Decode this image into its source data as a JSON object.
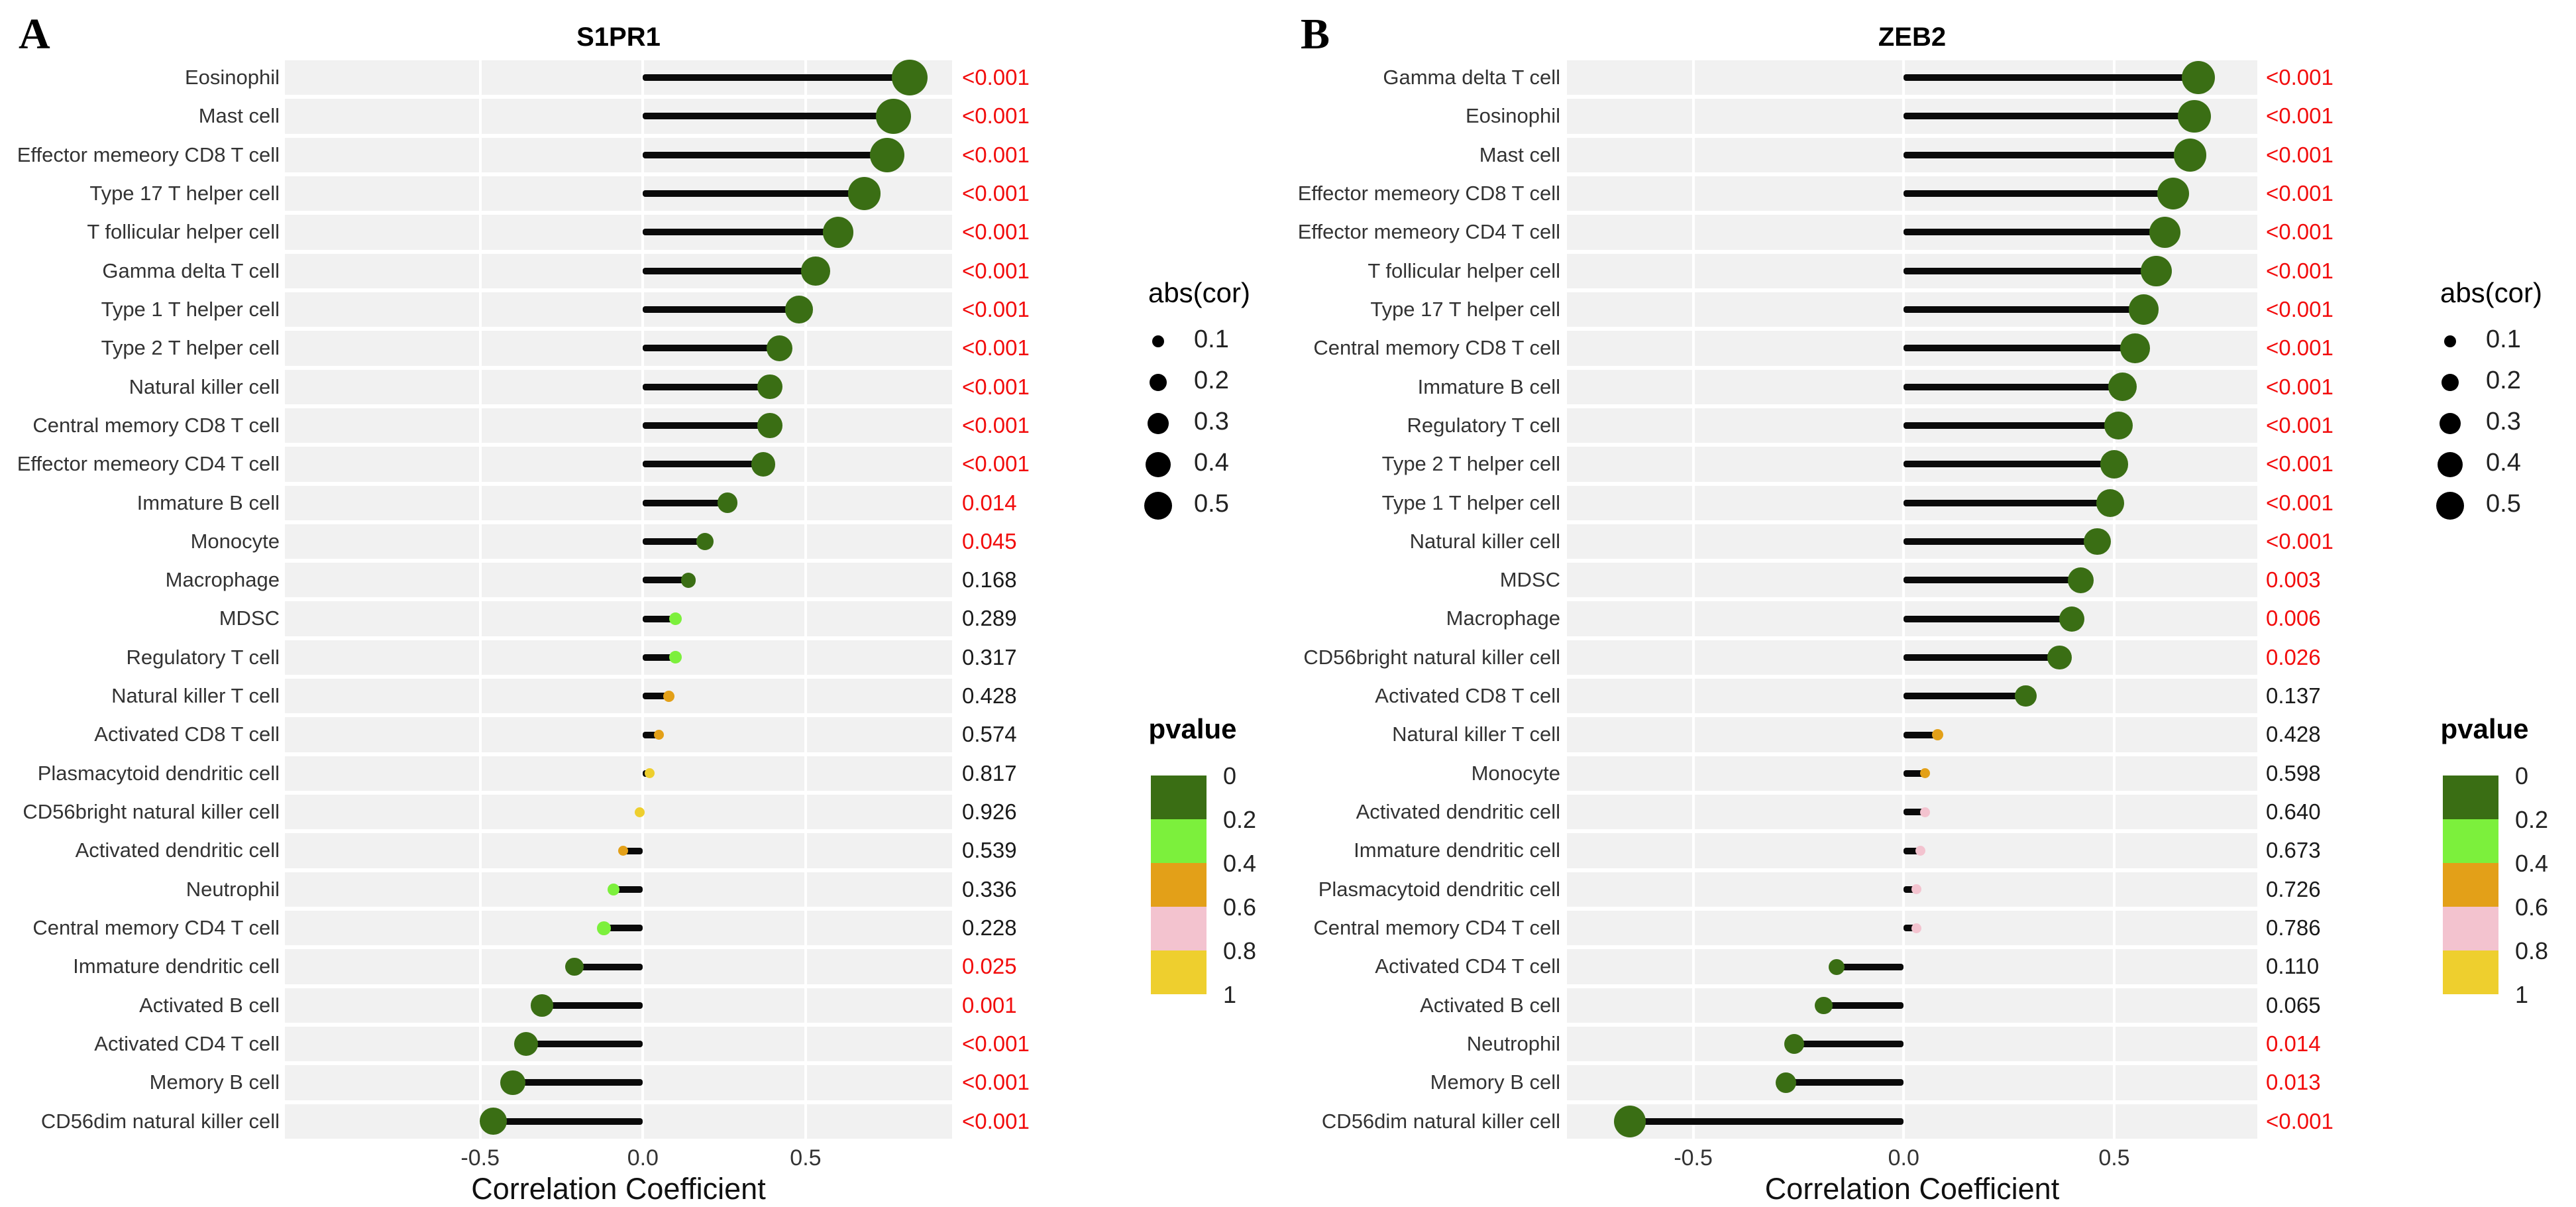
{
  "figure": {
    "kind": "paired lollipop correlation plots"
  },
  "colors": {
    "pvalue_bins": [
      "#3a6e14",
      "#7cf03c",
      "#e3a018",
      "#f3c3cf",
      "#eecf2e"
    ],
    "significant_text": "#f20c0c",
    "normal_text": "#1a1a1a",
    "row_band": "#f1f1f1",
    "stick": "#0a0a0a"
  },
  "legend_abscor": {
    "title": "abs(cor)",
    "sizes": [
      {
        "label": "0.1",
        "value": 0.1
      },
      {
        "label": "0.2",
        "value": 0.2
      },
      {
        "label": "0.3",
        "value": 0.3
      },
      {
        "label": "0.4",
        "value": 0.4
      },
      {
        "label": "0.5",
        "value": 0.5
      }
    ]
  },
  "legend_pvalue": {
    "title": "pvalue",
    "tick_labels": [
      "0",
      "0.2",
      "0.4",
      "0.6",
      "0.8",
      "1"
    ]
  },
  "chart_data": [
    {
      "type": "lollipop",
      "letter": "A",
      "title": "S1PR1",
      "xlabel": "Correlation Coefficient",
      "xlim": [
        -1.1,
        0.95
      ],
      "grid": true,
      "xticks": [
        {
          "v": -0.5,
          "label": "-0.5"
        },
        {
          "v": 0.0,
          "label": "0.0"
        },
        {
          "v": 0.5,
          "label": "0.5"
        }
      ],
      "rows": [
        {
          "cell": "Eosinophil",
          "cor": 0.82,
          "pvalue": "<0.001"
        },
        {
          "cell": "Mast cell",
          "cor": 0.77,
          "pvalue": "<0.001"
        },
        {
          "cell": "Effector memeory CD8 T cell",
          "cor": 0.75,
          "pvalue": "<0.001"
        },
        {
          "cell": "Type 17 T helper cell",
          "cor": 0.68,
          "pvalue": "<0.001"
        },
        {
          "cell": "T follicular helper cell",
          "cor": 0.6,
          "pvalue": "<0.001"
        },
        {
          "cell": "Gamma delta T cell",
          "cor": 0.53,
          "pvalue": "<0.001"
        },
        {
          "cell": "Type 1 T helper cell",
          "cor": 0.48,
          "pvalue": "<0.001"
        },
        {
          "cell": "Type 2 T helper cell",
          "cor": 0.42,
          "pvalue": "<0.001"
        },
        {
          "cell": "Natural killer cell",
          "cor": 0.39,
          "pvalue": "<0.001"
        },
        {
          "cell": "Central memory CD8 T cell",
          "cor": 0.39,
          "pvalue": "<0.001"
        },
        {
          "cell": "Effector memeory CD4 T cell",
          "cor": 0.37,
          "pvalue": "<0.001"
        },
        {
          "cell": "Immature  B cell",
          "cor": 0.26,
          "pvalue": "0.014"
        },
        {
          "cell": "Monocyte",
          "cor": 0.19,
          "pvalue": "0.045"
        },
        {
          "cell": "Macrophage",
          "cor": 0.14,
          "pvalue": "0.168"
        },
        {
          "cell": "MDSC",
          "cor": 0.1,
          "pvalue": "0.289"
        },
        {
          "cell": "Regulatory T cell",
          "cor": 0.1,
          "pvalue": "0.317"
        },
        {
          "cell": "Natural killer T cell",
          "cor": 0.08,
          "pvalue": "0.428"
        },
        {
          "cell": "Activated CD8 T cell",
          "cor": 0.05,
          "pvalue": "0.574"
        },
        {
          "cell": "Plasmacytoid dendritic cell",
          "cor": 0.02,
          "pvalue": "0.817"
        },
        {
          "cell": "CD56bright natural killer cell",
          "cor": -0.01,
          "pvalue": "0.926"
        },
        {
          "cell": "Activated dendritic cell",
          "cor": -0.06,
          "pvalue": "0.539"
        },
        {
          "cell": "Neutrophil",
          "cor": -0.09,
          "pvalue": "0.336"
        },
        {
          "cell": "Central memory CD4 T cell",
          "cor": -0.12,
          "pvalue": "0.228"
        },
        {
          "cell": "Immature dendritic cell",
          "cor": -0.21,
          "pvalue": "0.025"
        },
        {
          "cell": "Activated B cell",
          "cor": -0.31,
          "pvalue": "0.001"
        },
        {
          "cell": "Activated CD4 T cell",
          "cor": -0.36,
          "pvalue": "<0.001"
        },
        {
          "cell": "Memory B cell",
          "cor": -0.4,
          "pvalue": "<0.001"
        },
        {
          "cell": "CD56dim natural killer cell",
          "cor": -0.46,
          "pvalue": "<0.001"
        }
      ]
    },
    {
      "type": "lollipop",
      "letter": "B",
      "title": "ZEB2",
      "xlabel": "Correlation Coefficient",
      "xlim": [
        -0.8,
        0.84
      ],
      "grid": true,
      "xticks": [
        {
          "v": -0.5,
          "label": "-0.5"
        },
        {
          "v": 0.0,
          "label": "0.0"
        },
        {
          "v": 0.5,
          "label": "0.5"
        }
      ],
      "rows": [
        {
          "cell": "Gamma delta T cell",
          "cor": 0.7,
          "pvalue": "<0.001"
        },
        {
          "cell": "Eosinophil",
          "cor": 0.69,
          "pvalue": "<0.001"
        },
        {
          "cell": "Mast cell",
          "cor": 0.68,
          "pvalue": "<0.001"
        },
        {
          "cell": "Effector memeory CD8 T cell",
          "cor": 0.64,
          "pvalue": "<0.001"
        },
        {
          "cell": "Effector memeory CD4 T cell",
          "cor": 0.62,
          "pvalue": "<0.001"
        },
        {
          "cell": "T follicular helper cell",
          "cor": 0.6,
          "pvalue": "<0.001"
        },
        {
          "cell": "Type 17 T helper cell",
          "cor": 0.57,
          "pvalue": "<0.001"
        },
        {
          "cell": "Central memory CD8 T cell",
          "cor": 0.55,
          "pvalue": "<0.001"
        },
        {
          "cell": "Immature  B cell",
          "cor": 0.52,
          "pvalue": "<0.001"
        },
        {
          "cell": "Regulatory T cell",
          "cor": 0.51,
          "pvalue": "<0.001"
        },
        {
          "cell": "Type 2 T helper cell",
          "cor": 0.5,
          "pvalue": "<0.001"
        },
        {
          "cell": "Type 1 T helper cell",
          "cor": 0.49,
          "pvalue": "<0.001"
        },
        {
          "cell": "Natural killer cell",
          "cor": 0.46,
          "pvalue": "<0.001"
        },
        {
          "cell": "MDSC",
          "cor": 0.42,
          "pvalue": "0.003"
        },
        {
          "cell": "Macrophage",
          "cor": 0.4,
          "pvalue": "0.006"
        },
        {
          "cell": "CD56bright natural killer cell",
          "cor": 0.37,
          "pvalue": "0.026"
        },
        {
          "cell": "Activated CD8 T cell",
          "cor": 0.29,
          "pvalue": "0.137"
        },
        {
          "cell": "Natural killer T cell",
          "cor": 0.08,
          "pvalue": "0.428"
        },
        {
          "cell": "Monocyte",
          "cor": 0.05,
          "pvalue": "0.598"
        },
        {
          "cell": "Activated dendritic cell",
          "cor": 0.05,
          "pvalue": "0.640"
        },
        {
          "cell": "Immature dendritic cell",
          "cor": 0.04,
          "pvalue": "0.673"
        },
        {
          "cell": "Plasmacytoid dendritic cell",
          "cor": 0.03,
          "pvalue": "0.726"
        },
        {
          "cell": "Central memory CD4 T cell",
          "cor": 0.03,
          "pvalue": "0.786"
        },
        {
          "cell": "Activated CD4 T cell",
          "cor": -0.16,
          "pvalue": "0.110"
        },
        {
          "cell": "Activated B cell",
          "cor": -0.19,
          "pvalue": "0.065"
        },
        {
          "cell": "Neutrophil",
          "cor": -0.26,
          "pvalue": "0.014"
        },
        {
          "cell": "Memory B cell",
          "cor": -0.28,
          "pvalue": "0.013"
        },
        {
          "cell": "CD56dim natural killer cell",
          "cor": -0.65,
          "pvalue": "<0.001"
        }
      ]
    }
  ]
}
